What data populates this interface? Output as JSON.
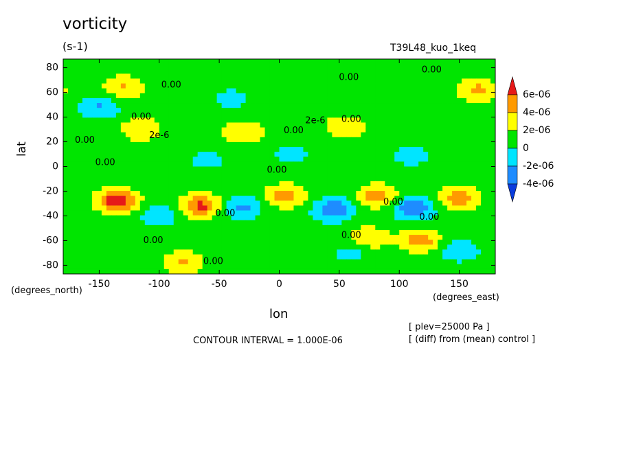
{
  "header": {
    "title": "vorticity",
    "units": "(s-1)",
    "experiment": "T39L48_kuo_1keq"
  },
  "footer": {
    "contour_interval": "CONTOUR INTERVAL = 1.000E-06",
    "level": "[ plev=25000 Pa ]",
    "comparison": "[ (diff) from (mean) control ]"
  },
  "chart_data": {
    "type": "heatmap",
    "title": "vorticity",
    "xlabel": "lon",
    "xunits": "(degrees_east)",
    "ylabel": "lat",
    "yunits": "(degrees_north)",
    "xlim": [
      -180,
      180
    ],
    "ylim": [
      -87,
      87
    ],
    "xticks": [
      -150,
      -100,
      -50,
      0,
      50,
      100,
      150
    ],
    "yticks": [
      80,
      60,
      40,
      20,
      0,
      -20,
      -40,
      -60,
      -80
    ],
    "contour_interval": 1e-06,
    "legend": {
      "placement": "right",
      "labels": [
        "6e-06",
        "4e-06",
        "2e-06",
        "0",
        "-2e-06",
        "-4e-06"
      ],
      "bins": [
        {
          "range": [
            6e-06,
            null
          ],
          "color": "#e61919"
        },
        {
          "range": [
            4e-06,
            6e-06
          ],
          "color": "#ff9a00"
        },
        {
          "range": [
            2e-06,
            4e-06
          ],
          "color": "#ffff00"
        },
        {
          "range": [
            0,
            2e-06
          ],
          "color": "#00e500"
        },
        {
          "range": [
            -2e-06,
            0
          ],
          "color": "#00e5ff"
        },
        {
          "range": [
            -4e-06,
            -2e-06
          ],
          "color": "#1e8cff"
        },
        {
          "range": [
            null,
            -4e-06
          ],
          "color": "#0a3cdc"
        }
      ]
    },
    "background_value": 1e-06,
    "features": [
      {
        "lon": -135,
        "lat": -28,
        "value": 6.8e-06
      },
      {
        "lon": -65,
        "lat": -32,
        "value": 5.5e-06
      },
      {
        "lon": 5,
        "lat": -24,
        "value": 4.2e-06
      },
      {
        "lon": 82,
        "lat": -24,
        "value": 4.2e-06
      },
      {
        "lon": 150,
        "lat": -26,
        "value": 4.5e-06
      },
      {
        "lon": 75,
        "lat": -58,
        "value": 3e-06
      },
      {
        "lon": 118,
        "lat": -60,
        "value": 4.2e-06
      },
      {
        "lon": -80,
        "lat": -78,
        "value": 3.2e-06
      },
      {
        "lon": -130,
        "lat": 64,
        "value": 3.2e-06
      },
      {
        "lon": 165,
        "lat": 62,
        "value": 3.5e-06
      },
      {
        "lon": 55,
        "lat": 32,
        "value": 3e-06
      },
      {
        "lon": -115,
        "lat": 30,
        "value": 3e-06
      },
      {
        "lon": -30,
        "lat": 28,
        "value": 3e-06
      },
      {
        "lon": 45,
        "lat": -35,
        "value": -4.8e-06
      },
      {
        "lon": 112,
        "lat": -34,
        "value": -5e-06
      },
      {
        "lon": -30,
        "lat": -33,
        "value": -3.5e-06
      },
      {
        "lon": -100,
        "lat": -40,
        "value": -2.5e-06
      },
      {
        "lon": -150,
        "lat": 48,
        "value": -3.2e-06
      },
      {
        "lon": 10,
        "lat": 10,
        "value": -2e-06
      },
      {
        "lon": 110,
        "lat": 8,
        "value": -2e-06
      },
      {
        "lon": -60,
        "lat": 5,
        "value": -1.8e-06
      },
      {
        "lon": 150,
        "lat": -68,
        "value": -2.8e-06
      },
      {
        "lon": 60,
        "lat": -70,
        "value": -1.8e-06
      },
      {
        "lon": -40,
        "lat": 55,
        "value": -1.8e-06
      }
    ],
    "contour_labels": [
      {
        "lon": 127,
        "lat": 78,
        "text": "0.00"
      },
      {
        "lon": 58,
        "lat": 72,
        "text": "0.00"
      },
      {
        "lon": -90,
        "lat": 66,
        "text": "0.00"
      },
      {
        "lon": -115,
        "lat": 40,
        "text": "0.00"
      },
      {
        "lon": -100,
        "lat": 25,
        "text": "2e-6"
      },
      {
        "lon": -162,
        "lat": 21,
        "text": "0.00"
      },
      {
        "lon": 30,
        "lat": 37,
        "text": "2e-6"
      },
      {
        "lon": 60,
        "lat": 38,
        "text": "0.00"
      },
      {
        "lon": 12,
        "lat": 29,
        "text": "0.00"
      },
      {
        "lon": -145,
        "lat": 3,
        "text": "0.00"
      },
      {
        "lon": -2,
        "lat": -3,
        "text": "0.00"
      },
      {
        "lon": -45,
        "lat": -38,
        "text": "0.00"
      },
      {
        "lon": 95,
        "lat": -29,
        "text": "0.00"
      },
      {
        "lon": 125,
        "lat": -41,
        "text": "0.00"
      },
      {
        "lon": 60,
        "lat": -56,
        "text": "0.00"
      },
      {
        "lon": -105,
        "lat": -60,
        "text": "0.00"
      },
      {
        "lon": -55,
        "lat": -77,
        "text": "0.00"
      }
    ]
  }
}
